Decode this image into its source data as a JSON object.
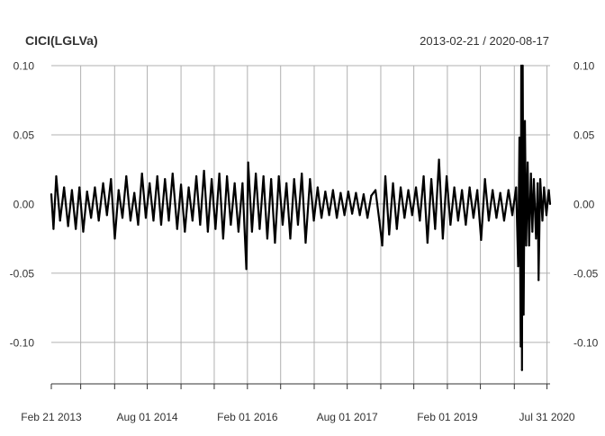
{
  "chart_data": {
    "type": "line",
    "title": "CICI(LGLVa)",
    "date_range": "2013-02-21 / 2020-08-17",
    "x_start": "2013-02-21",
    "x_end": "2020-08-17",
    "ylim": [
      -0.13,
      0.1
    ],
    "y_ticks": [
      {
        "value": 0.1,
        "label": "0.10"
      },
      {
        "value": 0.05,
        "label": "0.05"
      },
      {
        "value": 0.0,
        "label": "0.00"
      },
      {
        "value": -0.05,
        "label": "-0.05"
      },
      {
        "value": -0.1,
        "label": "-0.10"
      }
    ],
    "x_tick_labels": [
      {
        "date": "2013-02-21",
        "label": "Feb 21 2013"
      },
      {
        "date": "2014-08-01",
        "label": "Aug 01 2014"
      },
      {
        "date": "2016-02-01",
        "label": "Feb 01 2016"
      },
      {
        "date": "2017-08-01",
        "label": "Aug 01 2017"
      },
      {
        "date": "2019-02-01",
        "label": "Feb 01 2019"
      },
      {
        "date": "2020-07-31",
        "label": "Jul 31 2020"
      }
    ],
    "x_gridlines": [
      "2013-08-01",
      "2014-02-03",
      "2014-08-01",
      "2015-02-02",
      "2015-08-03",
      "2016-02-01",
      "2016-08-01",
      "2017-02-01",
      "2017-08-01",
      "2018-02-01",
      "2018-08-01",
      "2019-02-01",
      "2019-08-01",
      "2020-02-03",
      "2020-07-31"
    ],
    "grid": true,
    "series": [
      {
        "values": [
          {
            "date": "2013-02-21",
            "value": 0.007
          },
          {
            "date": "2013-03-05",
            "value": -0.018
          },
          {
            "date": "2013-03-20",
            "value": 0.02
          },
          {
            "date": "2013-04-10",
            "value": -0.012
          },
          {
            "date": "2013-05-02",
            "value": 0.012
          },
          {
            "date": "2013-05-24",
            "value": -0.016
          },
          {
            "date": "2013-06-14",
            "value": 0.01
          },
          {
            "date": "2013-07-05",
            "value": -0.018
          },
          {
            "date": "2013-07-25",
            "value": 0.012
          },
          {
            "date": "2013-08-15",
            "value": -0.02
          },
          {
            "date": "2013-09-05",
            "value": 0.009
          },
          {
            "date": "2013-09-27",
            "value": -0.01
          },
          {
            "date": "2013-10-18",
            "value": 0.012
          },
          {
            "date": "2013-11-08",
            "value": -0.012
          },
          {
            "date": "2013-12-02",
            "value": 0.015
          },
          {
            "date": "2013-12-23",
            "value": -0.008
          },
          {
            "date": "2014-01-14",
            "value": 0.018
          },
          {
            "date": "2014-02-04",
            "value": -0.025
          },
          {
            "date": "2014-02-25",
            "value": 0.01
          },
          {
            "date": "2014-03-18",
            "value": -0.01
          },
          {
            "date": "2014-04-08",
            "value": 0.02
          },
          {
            "date": "2014-05-01",
            "value": -0.012
          },
          {
            "date": "2014-05-22",
            "value": 0.008
          },
          {
            "date": "2014-06-12",
            "value": -0.015
          },
          {
            "date": "2014-07-03",
            "value": 0.022
          },
          {
            "date": "2014-07-24",
            "value": -0.01
          },
          {
            "date": "2014-08-14",
            "value": 0.015
          },
          {
            "date": "2014-09-04",
            "value": -0.012
          },
          {
            "date": "2014-09-25",
            "value": 0.02
          },
          {
            "date": "2014-10-16",
            "value": -0.015
          },
          {
            "date": "2014-11-06",
            "value": 0.018
          },
          {
            "date": "2014-11-27",
            "value": -0.012
          },
          {
            "date": "2014-12-18",
            "value": 0.022
          },
          {
            "date": "2015-01-12",
            "value": -0.018
          },
          {
            "date": "2015-02-02",
            "value": 0.014
          },
          {
            "date": "2015-02-23",
            "value": -0.02
          },
          {
            "date": "2015-03-16",
            "value": 0.012
          },
          {
            "date": "2015-04-06",
            "value": -0.012
          },
          {
            "date": "2015-04-27",
            "value": 0.02
          },
          {
            "date": "2015-05-18",
            "value": -0.015
          },
          {
            "date": "2015-06-08",
            "value": 0.024
          },
          {
            "date": "2015-06-29",
            "value": -0.02
          },
          {
            "date": "2015-07-20",
            "value": 0.018
          },
          {
            "date": "2015-08-10",
            "value": -0.018
          },
          {
            "date": "2015-08-31",
            "value": 0.022
          },
          {
            "date": "2015-09-21",
            "value": -0.025
          },
          {
            "date": "2015-10-12",
            "value": 0.02
          },
          {
            "date": "2015-11-02",
            "value": -0.015
          },
          {
            "date": "2015-11-23",
            "value": 0.015
          },
          {
            "date": "2015-12-14",
            "value": -0.02
          },
          {
            "date": "2016-01-05",
            "value": 0.015
          },
          {
            "date": "2016-01-26",
            "value": -0.047
          },
          {
            "date": "2016-02-05",
            "value": 0.03
          },
          {
            "date": "2016-02-26",
            "value": -0.02
          },
          {
            "date": "2016-03-18",
            "value": 0.022
          },
          {
            "date": "2016-04-08",
            "value": -0.018
          },
          {
            "date": "2016-04-29",
            "value": 0.02
          },
          {
            "date": "2016-05-20",
            "value": -0.025
          },
          {
            "date": "2016-06-10",
            "value": 0.018
          },
          {
            "date": "2016-07-01",
            "value": -0.028
          },
          {
            "date": "2016-07-22",
            "value": 0.02
          },
          {
            "date": "2016-08-12",
            "value": -0.015
          },
          {
            "date": "2016-09-02",
            "value": 0.015
          },
          {
            "date": "2016-09-23",
            "value": -0.025
          },
          {
            "date": "2016-10-14",
            "value": 0.018
          },
          {
            "date": "2016-11-04",
            "value": -0.015
          },
          {
            "date": "2016-11-25",
            "value": 0.022
          },
          {
            "date": "2016-12-16",
            "value": -0.028
          },
          {
            "date": "2017-01-09",
            "value": 0.018
          },
          {
            "date": "2017-01-30",
            "value": -0.012
          },
          {
            "date": "2017-02-20",
            "value": 0.012
          },
          {
            "date": "2017-03-13",
            "value": -0.01
          },
          {
            "date": "2017-04-03",
            "value": 0.009
          },
          {
            "date": "2017-04-24",
            "value": -0.008
          },
          {
            "date": "2017-05-15",
            "value": 0.01
          },
          {
            "date": "2017-06-05",
            "value": -0.01
          },
          {
            "date": "2017-06-26",
            "value": 0.008
          },
          {
            "date": "2017-07-17",
            "value": -0.008
          },
          {
            "date": "2017-08-07",
            "value": 0.009
          },
          {
            "date": "2017-08-28",
            "value": -0.007
          },
          {
            "date": "2017-09-18",
            "value": 0.008
          },
          {
            "date": "2017-10-09",
            "value": -0.008
          },
          {
            "date": "2017-10-30",
            "value": 0.007
          },
          {
            "date": "2017-11-20",
            "value": -0.01
          },
          {
            "date": "2017-12-11",
            "value": 0.006
          },
          {
            "date": "2018-01-03",
            "value": 0.01
          },
          {
            "date": "2018-01-24",
            "value": -0.012
          },
          {
            "date": "2018-02-09",
            "value": -0.03
          },
          {
            "date": "2018-02-26",
            "value": 0.02
          },
          {
            "date": "2018-03-19",
            "value": -0.022
          },
          {
            "date": "2018-04-09",
            "value": 0.015
          },
          {
            "date": "2018-04-30",
            "value": -0.018
          },
          {
            "date": "2018-05-21",
            "value": 0.012
          },
          {
            "date": "2018-06-11",
            "value": -0.01
          },
          {
            "date": "2018-07-02",
            "value": 0.01
          },
          {
            "date": "2018-07-23",
            "value": -0.008
          },
          {
            "date": "2018-08-13",
            "value": 0.012
          },
          {
            "date": "2018-09-03",
            "value": -0.012
          },
          {
            "date": "2018-09-24",
            "value": 0.02
          },
          {
            "date": "2018-10-15",
            "value": -0.028
          },
          {
            "date": "2018-11-05",
            "value": 0.018
          },
          {
            "date": "2018-11-26",
            "value": -0.018
          },
          {
            "date": "2018-12-17",
            "value": 0.032
          },
          {
            "date": "2019-01-07",
            "value": -0.025
          },
          {
            "date": "2019-01-28",
            "value": 0.02
          },
          {
            "date": "2019-02-18",
            "value": -0.015
          },
          {
            "date": "2019-03-11",
            "value": 0.012
          },
          {
            "date": "2019-04-01",
            "value": -0.012
          },
          {
            "date": "2019-04-22",
            "value": 0.01
          },
          {
            "date": "2019-05-13",
            "value": -0.015
          },
          {
            "date": "2019-06-03",
            "value": 0.012
          },
          {
            "date": "2019-06-24",
            "value": -0.01
          },
          {
            "date": "2019-07-15",
            "value": 0.01
          },
          {
            "date": "2019-08-05",
            "value": -0.026
          },
          {
            "date": "2019-08-26",
            "value": 0.018
          },
          {
            "date": "2019-09-16",
            "value": -0.012
          },
          {
            "date": "2019-10-07",
            "value": 0.01
          },
          {
            "date": "2019-10-28",
            "value": -0.01
          },
          {
            "date": "2019-11-18",
            "value": 0.008
          },
          {
            "date": "2019-12-09",
            "value": -0.012
          },
          {
            "date": "2020-01-02",
            "value": 0.01
          },
          {
            "date": "2020-01-23",
            "value": -0.008
          },
          {
            "date": "2020-02-13",
            "value": 0.012
          },
          {
            "date": "2020-02-24",
            "value": -0.045
          },
          {
            "date": "2020-03-02",
            "value": 0.048
          },
          {
            "date": "2020-03-09",
            "value": -0.103
          },
          {
            "date": "2020-03-12",
            "value": 0.1
          },
          {
            "date": "2020-03-16",
            "value": -0.12
          },
          {
            "date": "2020-03-20",
            "value": 0.1
          },
          {
            "date": "2020-03-25",
            "value": -0.08
          },
          {
            "date": "2020-04-01",
            "value": 0.06
          },
          {
            "date": "2020-04-08",
            "value": -0.03
          },
          {
            "date": "2020-04-16",
            "value": 0.03
          },
          {
            "date": "2020-04-24",
            "value": -0.03
          },
          {
            "date": "2020-05-04",
            "value": 0.022
          },
          {
            "date": "2020-05-12",
            "value": -0.02
          },
          {
            "date": "2020-05-20",
            "value": 0.018
          },
          {
            "date": "2020-06-01",
            "value": -0.025
          },
          {
            "date": "2020-06-10",
            "value": 0.015
          },
          {
            "date": "2020-06-15",
            "value": -0.055
          },
          {
            "date": "2020-06-24",
            "value": 0.018
          },
          {
            "date": "2020-07-06",
            "value": -0.012
          },
          {
            "date": "2020-07-15",
            "value": 0.012
          },
          {
            "date": "2020-07-28",
            "value": -0.008
          },
          {
            "date": "2020-08-10",
            "value": 0.01
          },
          {
            "date": "2020-08-17",
            "value": 0.0
          }
        ]
      }
    ]
  }
}
